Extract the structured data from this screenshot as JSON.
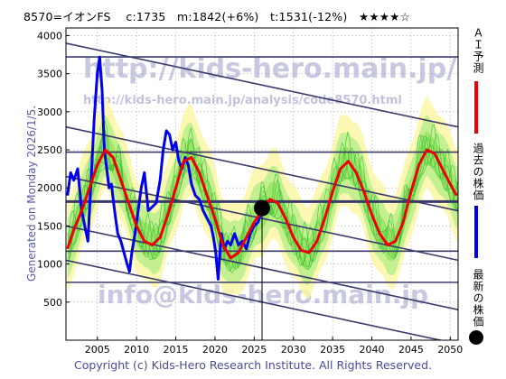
{
  "header": {
    "code": "8570=イオンFS",
    "current": "c:1735",
    "median": "m:1842(+6%)",
    "target": "t:1531(-12%)",
    "stars": "★★★★☆"
  },
  "side_label": "Generated on Monday 2026/1/5.",
  "footer": {
    "copyright": "Copyright (c) Kids-Hero Research Institute. All Rights Reserved."
  },
  "watermarks": {
    "main_url": "http://kids-hero.main.jp/",
    "sub_url": "http://kids-hero.main.jp/analysis/code8570.html",
    "email": "info@kids-hero.main.jp"
  },
  "legend": [
    {
      "label": "ＡＩ予測",
      "color": "#ee0000",
      "marker": "line"
    },
    {
      "label": "過去の株価",
      "color": "#0000ee",
      "marker": "line"
    },
    {
      "label": "最新の株価",
      "color": "#000000",
      "marker": "dot"
    }
  ],
  "chart_data": {
    "type": "line",
    "title": "8570=イオンFS c:1735 m:1842(+6%) t:1531(-12%) ★★★★☆",
    "xlabel": "",
    "ylabel": "",
    "xlim": [
      2001,
      2051
    ],
    "ylim": [
      0,
      4100
    ],
    "x_ticks": [
      2005,
      2010,
      2015,
      2020,
      2025,
      2030,
      2035,
      2040,
      2045,
      2050
    ],
    "y_ticks": [
      500,
      1000,
      1500,
      2000,
      2500,
      3000,
      3500,
      4000
    ],
    "grid": true,
    "latest_point": {
      "x": 2026.0,
      "y": 1735
    },
    "horizontal_lines": [
      3720,
      2470,
      1820,
      1170,
      760
    ],
    "trend_channel_lines": [
      {
        "x": [
          2001,
          2051
        ],
        "y": [
          3900,
          2800
        ]
      },
      {
        "x": [
          2001,
          2051
        ],
        "y": [
          2800,
          1700
        ]
      },
      {
        "x": [
          2001,
          2051
        ],
        "y": [
          2150,
          1050
        ]
      },
      {
        "x": [
          2001,
          2051
        ],
        "y": [
          1500,
          400
        ]
      },
      {
        "x": [
          2001,
          2051
        ],
        "y": [
          1050,
          -50
        ]
      }
    ],
    "series": [
      {
        "name": "過去の株価",
        "color": "#0000ee",
        "x": [
          2001.2,
          2001.6,
          2002.0,
          2002.5,
          2003.0,
          2003.4,
          2003.8,
          2004.2,
          2004.6,
          2005.0,
          2005.3,
          2005.6,
          2005.9,
          2006.2,
          2006.5,
          2006.8,
          2007.2,
          2007.6,
          2008.0,
          2008.4,
          2008.8,
          2009.1,
          2009.4,
          2009.8,
          2010.2,
          2010.6,
          2011.0,
          2011.5,
          2012.0,
          2012.5,
          2013.0,
          2013.4,
          2013.8,
          2014.2,
          2014.6,
          2015.0,
          2015.4,
          2015.8,
          2016.2,
          2016.6,
          2017.0,
          2017.5,
          2018.0,
          2018.5,
          2019.0,
          2019.5,
          2019.8,
          2020.1,
          2020.4,
          2020.8,
          2021.2,
          2021.6,
          2022.0,
          2022.5,
          2023.0,
          2023.5,
          2024.0,
          2024.5,
          2025.0,
          2025.5,
          2026.0
        ],
        "y": [
          1900,
          2200,
          2100,
          2250,
          1700,
          1500,
          1300,
          2100,
          2900,
          3500,
          3720,
          3300,
          2500,
          2250,
          2000,
          2050,
          1700,
          1400,
          1300,
          1150,
          1000,
          900,
          1150,
          1400,
          1700,
          2000,
          2200,
          1700,
          1750,
          1800,
          2100,
          2500,
          2750,
          2700,
          2500,
          2600,
          2350,
          2250,
          2400,
          2300,
          2050,
          1900,
          1850,
          1700,
          1600,
          1500,
          1350,
          1150,
          800,
          1400,
          1200,
          1300,
          1250,
          1400,
          1250,
          1300,
          1200,
          1400,
          1500,
          1550,
          1735
        ]
      },
      {
        "name": "ＡＩ予測",
        "color": "#ee0000",
        "x": [
          2001.2,
          2002.0,
          2003.0,
          2004.0,
          2005.0,
          2006.0,
          2007.0,
          2008.0,
          2009.0,
          2010.0,
          2011.0,
          2012.0,
          2013.0,
          2014.0,
          2015.0,
          2016.0,
          2017.0,
          2018.0,
          2019.0,
          2020.0,
          2021.0,
          2022.0,
          2023.0,
          2024.0,
          2025.0,
          2026.0,
          2027.0,
          2028.0,
          2029.0,
          2030.0,
          2031.0,
          2032.0,
          2033.0,
          2034.0,
          2035.0,
          2036.0,
          2037.0,
          2038.0,
          2039.0,
          2040.0,
          2041.0,
          2042.0,
          2043.0,
          2044.0,
          2045.0,
          2046.0,
          2047.0,
          2048.0,
          2049.0,
          2050.0,
          2050.8
        ],
        "y": [
          1200,
          1450,
          1700,
          2000,
          2300,
          2500,
          2400,
          2100,
          1800,
          1500,
          1300,
          1250,
          1350,
          1650,
          2000,
          2350,
          2400,
          2200,
          1900,
          1600,
          1250,
          1080,
          1150,
          1350,
          1550,
          1700,
          1850,
          1800,
          1600,
          1350,
          1180,
          1150,
          1300,
          1600,
          1950,
          2250,
          2350,
          2200,
          1950,
          1650,
          1400,
          1250,
          1300,
          1550,
          1950,
          2300,
          2500,
          2450,
          2250,
          2050,
          1900
        ]
      }
    ]
  }
}
